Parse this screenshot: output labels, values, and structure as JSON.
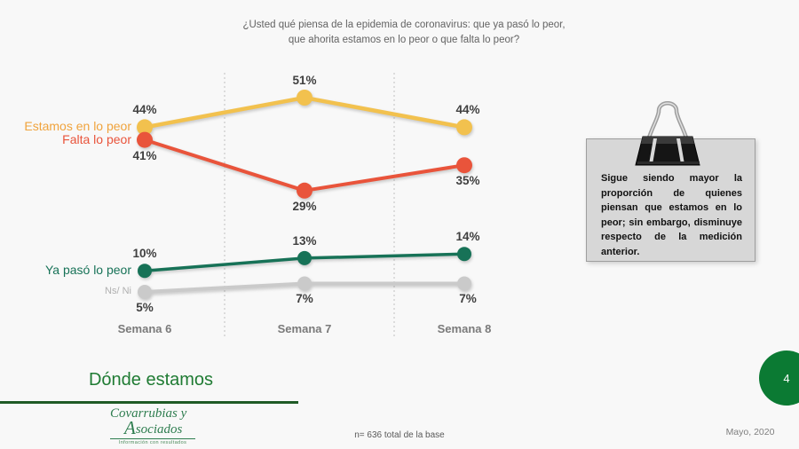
{
  "title": {
    "line1": "¿Usted qué piensa de la epidemia de coronavirus: que ya pasó lo peor,",
    "line2": "que ahorita estamos en lo peor o que falta lo peor?"
  },
  "chart_data": {
    "type": "line",
    "categories": [
      "Semana 6",
      "Semana 7",
      "Semana 8"
    ],
    "series": [
      {
        "name": "Estamos en lo peor",
        "values": [
          44,
          51,
          44
        ],
        "color": "#F2C14E",
        "label_color": "#F0A33C",
        "label_side": "above"
      },
      {
        "name": "Falta lo peor",
        "values": [
          41,
          29,
          35
        ],
        "color": "#E9543B",
        "label_color": "#E9543B",
        "label_side": "below"
      },
      {
        "name": "Ya pasó lo peor",
        "values": [
          10,
          13,
          14
        ],
        "color": "#177257",
        "label_color": "#177257",
        "label_side": "above"
      },
      {
        "name": "Ns/ Ni",
        "values": [
          5,
          7,
          7
        ],
        "color": "#CACACA",
        "label_color": "#B0B0B0",
        "label_side": "below",
        "small_legend": true
      }
    ],
    "value_suffix": "%",
    "title": "¿Usted qué piensa de la epidemia de coronavirus: que ya pasó lo peor, que ahorita estamos en lo peor o que falta lo peor?",
    "xlabel": "",
    "ylabel": "",
    "ylim": [
      0,
      60
    ],
    "grid": "dashed vertical separators between categories",
    "legend_position": "left of first data points",
    "value_label_color": "#3F3F3F",
    "axis_label_color": "#7A7A7A"
  },
  "note": {
    "icon": "binder-clip-icon",
    "text": "Sigue siendo mayor la proporción de quienes piensan que estamos en lo peor; sin embargo, disminuye respecto de la medición anterior."
  },
  "footer": {
    "section_title": "Dónde estamos",
    "logo_line1": "Covarrubias y",
    "logo_line2_initial": "A",
    "logo_line2_rest": "sociados",
    "logo_tagline": "Información con resultados",
    "base_note": "n= 636 total de la base",
    "date": "Mayo, 2020",
    "page_number": "4"
  },
  "colors": {
    "background": "#F8F8F8",
    "title_text": "#636363",
    "note_box_bg": "#D7D7D7",
    "note_box_border": "#9E9E9E",
    "section_title_green": "#1F7B33",
    "underline_green": "#1F5B26",
    "page_badge_green": "#0B7A33",
    "separator_gray": "#C0C0C0"
  }
}
